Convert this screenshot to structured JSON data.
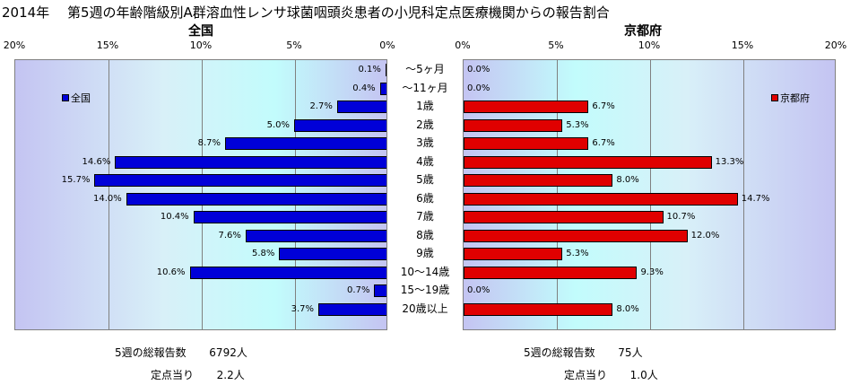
{
  "header": {
    "title": "2014年　 第5週の年齢階級別A群溶血性レンサ球菌咽頭炎患者の小児科定点医療機関からの報告割合"
  },
  "chart_data": [
    {
      "type": "bar",
      "orientation": "horizontal",
      "direction": "right-to-left",
      "title": "全国",
      "legend": "全国",
      "legend_position": "top-left",
      "color": "#0000d8",
      "xlim": [
        0,
        20
      ],
      "ticks": [
        "0%",
        "5%",
        "10%",
        "15%",
        "20%"
      ],
      "categories": [
        "～5ヶ月",
        "～11ヶ月",
        "1歳",
        "2歳",
        "3歳",
        "4歳",
        "5歳",
        "6歳",
        "7歳",
        "8歳",
        "9歳",
        "10～14歳",
        "15～19歳",
        "20歳以上"
      ],
      "values": [
        0.1,
        0.4,
        2.7,
        5.0,
        8.7,
        14.6,
        15.7,
        14.0,
        10.4,
        7.6,
        5.8,
        10.6,
        0.7,
        3.7
      ],
      "labels": [
        "0.1%",
        "0.4%",
        "2.7%",
        "5.0%",
        "8.7%",
        "14.6%",
        "15.7%",
        "14.0%",
        "10.4%",
        "7.6%",
        "5.8%",
        "10.6%",
        "0.7%",
        "3.7%"
      ]
    },
    {
      "type": "bar",
      "orientation": "horizontal",
      "direction": "left-to-right",
      "title": "京都府",
      "legend": "京都府",
      "legend_position": "top-right",
      "color": "#e00000",
      "xlim": [
        0,
        20
      ],
      "ticks": [
        "0%",
        "5%",
        "10%",
        "15%",
        "20%"
      ],
      "categories": [
        "～5ヶ月",
        "～11ヶ月",
        "1歳",
        "2歳",
        "3歳",
        "4歳",
        "5歳",
        "6歳",
        "7歳",
        "8歳",
        "9歳",
        "10～14歳",
        "15～19歳",
        "20歳以上"
      ],
      "values": [
        0.0,
        0.0,
        6.7,
        5.3,
        6.7,
        13.3,
        8.0,
        14.7,
        10.7,
        12.0,
        5.3,
        9.3,
        0.0,
        8.0
      ],
      "labels": [
        "0.0%",
        "0.0%",
        "6.7%",
        "5.3%",
        "6.7%",
        "13.3%",
        "8.0%",
        "14.7%",
        "10.7%",
        "12.0%",
        "5.3%",
        "9.3%",
        "0.0%",
        "8.0%"
      ]
    }
  ],
  "footer": {
    "left": {
      "total_label": "5週の総報告数",
      "total_value": "6792人",
      "per_label": "定点当り",
      "per_value": "2.2人"
    },
    "right": {
      "total_label": "5週の総報告数",
      "total_value": "75人",
      "per_label": "定点当り",
      "per_value": "1.0人"
    }
  }
}
